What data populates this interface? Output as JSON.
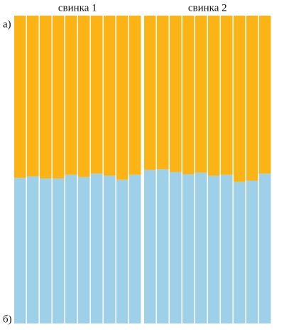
{
  "chart_data": [
    {
      "type": "bar",
      "stacked": true,
      "title": "свинка 1",
      "annotations": [
        "а)",
        "б)"
      ],
      "categories": [
        null,
        null,
        null,
        null,
        null,
        null,
        null,
        null,
        null,
        null
      ],
      "ylim": [
        0,
        100
      ],
      "series": [
        {
          "color": "#9ed0ea",
          "values": [
            47.3,
            47.8,
            47.1,
            47.1,
            48.3,
            47.6,
            48.7,
            48.0,
            46.7,
            48.3
          ]
        },
        {
          "color": "#fbb316",
          "values": [
            52.7,
            52.2,
            52.9,
            52.9,
            51.7,
            52.4,
            51.3,
            52.0,
            53.3,
            51.7
          ]
        }
      ]
    },
    {
      "type": "bar",
      "stacked": true,
      "title": "свинка 2",
      "categories": [
        null,
        null,
        null,
        null,
        null,
        null,
        null,
        null,
        null,
        null
      ],
      "ylim": [
        0,
        100
      ],
      "series": [
        {
          "color": "#9ed0ea",
          "values": [
            49.9,
            50.1,
            49.2,
            48.5,
            49.0,
            48.0,
            48.3,
            46.0,
            46.4,
            48.7
          ]
        },
        {
          "color": "#fbb316",
          "values": [
            50.1,
            49.9,
            50.8,
            51.5,
            51.0,
            52.0,
            51.7,
            54.0,
            53.6,
            51.3
          ]
        }
      ]
    }
  ]
}
